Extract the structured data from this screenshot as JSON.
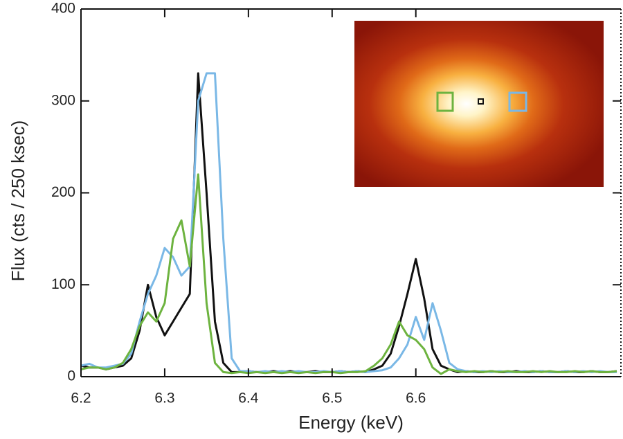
{
  "chart_data": {
    "type": "line",
    "x_label": "Energy (keV)",
    "y_label": "Flux (cts / 250 ksec)",
    "x": [
      6.2,
      6.21,
      6.22,
      6.23,
      6.24,
      6.25,
      6.26,
      6.27,
      6.28,
      6.29,
      6.3,
      6.31,
      6.32,
      6.33,
      6.34,
      6.35,
      6.36,
      6.37,
      6.38,
      6.39,
      6.4,
      6.41,
      6.42,
      6.43,
      6.44,
      6.45,
      6.46,
      6.47,
      6.48,
      6.49,
      6.5,
      6.51,
      6.52,
      6.53,
      6.54,
      6.55,
      6.56,
      6.57,
      6.58,
      6.59,
      6.6,
      6.61,
      6.62,
      6.63,
      6.64,
      6.65,
      6.66,
      6.67,
      6.68,
      6.69,
      6.7,
      6.71,
      6.72,
      6.73,
      6.74,
      6.75,
      6.76,
      6.77,
      6.78,
      6.79,
      6.8,
      6.81,
      6.82,
      6.83,
      6.84
    ],
    "series": [
      {
        "color": "#111111",
        "values": [
          12,
          10,
          10,
          8,
          10,
          12,
          20,
          50,
          100,
          65,
          45,
          60,
          75,
          90,
          330,
          200,
          60,
          15,
          5,
          5,
          6,
          5,
          5,
          6,
          5,
          6,
          5,
          5,
          6,
          5,
          5,
          6,
          5,
          6,
          5,
          8,
          12,
          25,
          55,
          90,
          128,
          85,
          30,
          12,
          8,
          5,
          6,
          5,
          5,
          6,
          5,
          5,
          6,
          5,
          5,
          6,
          5,
          5,
          6,
          5,
          5,
          6,
          5,
          5,
          6
        ]
      },
      {
        "color": "#7ab8e6",
        "values": [
          12,
          14,
          10,
          10,
          12,
          14,
          25,
          60,
          90,
          110,
          140,
          130,
          110,
          120,
          300,
          330,
          330,
          150,
          20,
          6,
          6,
          5,
          6,
          5,
          6,
          5,
          6,
          5,
          5,
          6,
          5,
          6,
          5,
          6,
          5,
          6,
          7,
          10,
          20,
          35,
          65,
          40,
          80,
          50,
          15,
          8,
          6,
          5,
          6,
          5,
          6,
          5,
          5,
          6,
          5,
          6,
          5,
          5,
          6,
          5,
          6,
          5,
          6,
          5,
          5
        ]
      },
      {
        "color": "#6db33f",
        "values": [
          8,
          10,
          10,
          8,
          10,
          15,
          30,
          55,
          70,
          60,
          80,
          150,
          170,
          120,
          220,
          80,
          15,
          5,
          4,
          5,
          4,
          5,
          4,
          5,
          4,
          5,
          4,
          5,
          4,
          5,
          5,
          4,
          5,
          5,
          6,
          12,
          20,
          35,
          60,
          45,
          40,
          30,
          10,
          3,
          8,
          6,
          5,
          6,
          5,
          6,
          5,
          6,
          5,
          5,
          6,
          5,
          6,
          5,
          5,
          6,
          5,
          6,
          5,
          5,
          6
        ]
      }
    ],
    "xlim": [
      6.2,
      6.845
    ],
    "ylim": [
      0,
      400
    ],
    "xticks": [
      6.2,
      6.3,
      6.4,
      6.5,
      6.6
    ],
    "yticks": [
      0,
      100,
      200,
      300,
      400
    ]
  }
}
